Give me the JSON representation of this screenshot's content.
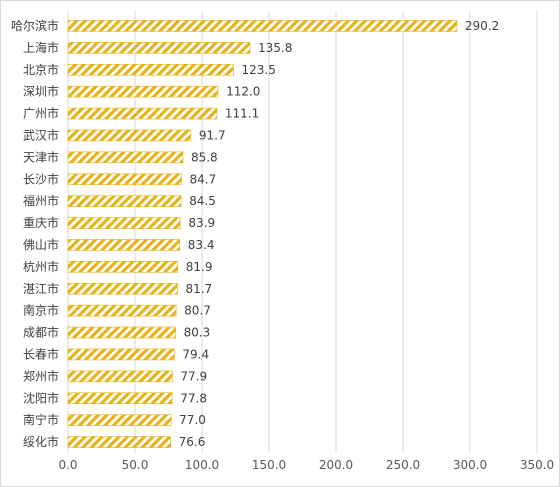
{
  "chart_data": {
    "type": "bar",
    "orientation": "horizontal",
    "categories": [
      "哈尔滨市",
      "上海市",
      "北京市",
      "深圳市",
      "广州市",
      "武汉市",
      "天津市",
      "长沙市",
      "福州市",
      "重庆市",
      "佛山市",
      "杭州市",
      "湛江市",
      "南京市",
      "成都市",
      "长春市",
      "郑州市",
      "沈阳市",
      "南宁市",
      "绥化市"
    ],
    "values": [
      290.2,
      135.8,
      123.5,
      112.0,
      111.1,
      91.7,
      85.8,
      84.7,
      84.5,
      83.9,
      83.4,
      81.9,
      81.7,
      80.7,
      80.3,
      79.4,
      77.9,
      77.8,
      77.0,
      76.6
    ],
    "value_labels": [
      "290.2",
      "135.8",
      "123.5",
      "112.0",
      "111.1",
      "91.7",
      "85.8",
      "84.7",
      "84.5",
      "83.9",
      "83.4",
      "81.9",
      "81.7",
      "80.7",
      "80.3",
      "79.4",
      "77.9",
      "77.8",
      "77.0",
      "76.6"
    ],
    "xlim": [
      0,
      350
    ],
    "x_ticks": [
      "0.0",
      "50.0",
      "100.0",
      "150.0",
      "200.0",
      "250.0",
      "300.0",
      "350.0"
    ],
    "x_tick_values": [
      0,
      50,
      100,
      150,
      200,
      250,
      300,
      350
    ],
    "title": "",
    "xlabel": "",
    "ylabel": "",
    "grid": true,
    "legend": "none",
    "colors": {
      "bar_stripe": "#E6B419",
      "bar_bg": "#ffffff",
      "grid": "#d9d9d9",
      "text": "#404040"
    }
  }
}
